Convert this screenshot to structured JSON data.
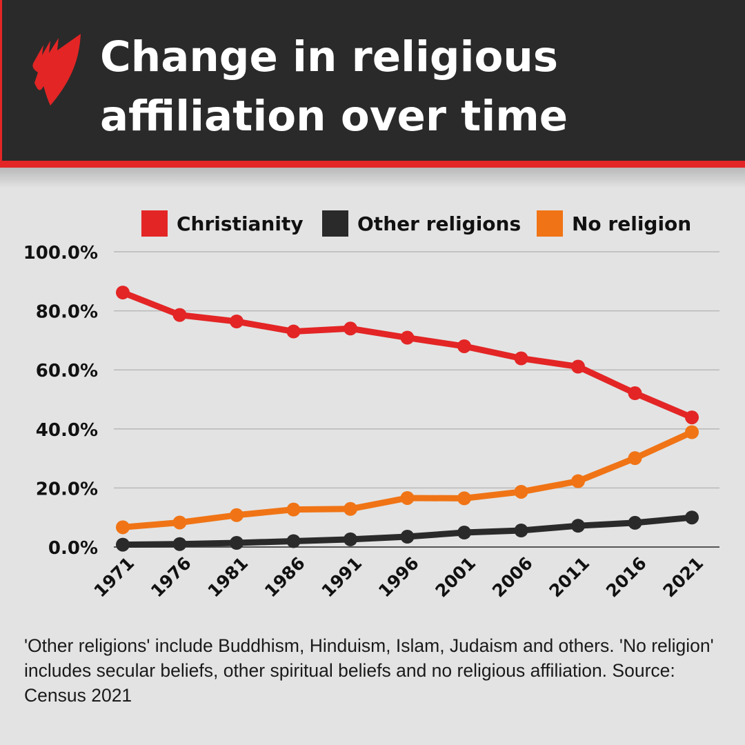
{
  "header": {
    "title": "Change in religious affiliation over time",
    "logo": "SBS"
  },
  "chart_data": {
    "type": "line",
    "title": "Change in religious affiliation over time",
    "categories": [
      "1971",
      "1976",
      "1981",
      "1986",
      "1991",
      "1996",
      "2001",
      "2006",
      "2011",
      "2016",
      "2021"
    ],
    "series": [
      {
        "name": "Christianity",
        "color": "#e32525",
        "values": [
          86.2,
          78.6,
          76.4,
          73.0,
          74.0,
          70.9,
          68.0,
          63.9,
          61.1,
          52.1,
          43.9
        ]
      },
      {
        "name": "Other religions",
        "color": "#2a2a2a",
        "values": [
          0.8,
          1.0,
          1.4,
          2.0,
          2.6,
          3.5,
          4.9,
          5.6,
          7.2,
          8.2,
          10.0
        ]
      },
      {
        "name": "No religion",
        "color": "#f07415",
        "values": [
          6.7,
          8.3,
          10.8,
          12.7,
          12.9,
          16.6,
          16.5,
          18.7,
          22.3,
          30.1,
          38.9
        ]
      }
    ],
    "yticks": [
      "0.0%",
      "20.0%",
      "40.0%",
      "60.0%",
      "80.0%",
      "100.0%"
    ],
    "ylim": [
      0,
      100
    ],
    "grid": true,
    "legend_position": "top"
  },
  "note": "'Other religions' include Buddhism, Hinduism, Islam, Judaism and others. 'No religion' includes secular beliefs, other spiritual beliefs and no religious affiliation. Source: Census 2021"
}
